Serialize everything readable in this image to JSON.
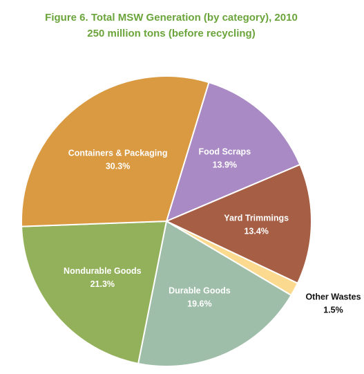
{
  "chart_data": {
    "type": "pie",
    "title": "Figure 6. Total MSW Generation (by category), 2010",
    "subtitle": "250 million tons (before recycling)",
    "slices": [
      {
        "name": "Food Scraps",
        "value": 13.9,
        "value_label": "13.9%",
        "color": "#a98ac4",
        "label_color": "#ffffff",
        "label_position": "inside"
      },
      {
        "name": "Yard Trimmings",
        "value": 13.4,
        "value_label": "13.4%",
        "color": "#a65e44",
        "label_color": "#ffffff",
        "label_position": "inside"
      },
      {
        "name": "Other Wastes",
        "value": 1.5,
        "value_label": "1.5%",
        "color": "#fbd98e",
        "label_color": "#111111",
        "label_position": "outside"
      },
      {
        "name": "Durable Goods",
        "value": 19.6,
        "value_label": "19.6%",
        "color": "#9ebea9",
        "label_color": "#ffffff",
        "label_position": "inside"
      },
      {
        "name": "Nondurable Goods",
        "value": 21.3,
        "value_label": "21.3%",
        "color": "#93b15a",
        "label_color": "#ffffff",
        "label_position": "inside"
      },
      {
        "name": "Containers & Packaging",
        "value": 30.3,
        "value_label": "30.3%",
        "color": "#d99a42",
        "label_color": "#ffffff",
        "label_position": "inside"
      }
    ]
  },
  "colors": {
    "title": "#6aa43a",
    "slice_border": "#ffffff"
  }
}
